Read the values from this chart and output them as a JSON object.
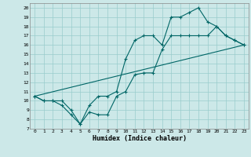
{
  "xlabel": "Humidex (Indice chaleur)",
  "bg_color": "#cce8e8",
  "grid_color": "#99cccc",
  "line_color": "#006666",
  "xlim": [
    -0.5,
    23.5
  ],
  "ylim": [
    7,
    20.5
  ],
  "xticks": [
    0,
    1,
    2,
    3,
    4,
    5,
    6,
    7,
    8,
    9,
    10,
    11,
    12,
    13,
    14,
    15,
    16,
    17,
    18,
    19,
    20,
    21,
    22,
    23
  ],
  "yticks": [
    7,
    8,
    9,
    10,
    11,
    12,
    13,
    14,
    15,
    16,
    17,
    18,
    19,
    20
  ],
  "line1_x": [
    0,
    1,
    2,
    3,
    4,
    5,
    6,
    7,
    8,
    9,
    10,
    11,
    12,
    13,
    14,
    15,
    16,
    17,
    18,
    19,
    20,
    21,
    22,
    23
  ],
  "line1_y": [
    10.5,
    10.0,
    10.0,
    9.5,
    8.5,
    7.5,
    8.8,
    8.5,
    8.5,
    10.5,
    11.0,
    12.8,
    13.0,
    13.0,
    15.5,
    17.0,
    17.0,
    17.0,
    17.0,
    17.0,
    18.0,
    17.0,
    16.5,
    16.0
  ],
  "line2_x": [
    0,
    1,
    2,
    3,
    4,
    5,
    6,
    7,
    8,
    9,
    10,
    11,
    12,
    13,
    14,
    15,
    16,
    17,
    18,
    19,
    20,
    21,
    22,
    23
  ],
  "line2_y": [
    10.5,
    10.0,
    10.0,
    10.0,
    9.0,
    7.5,
    9.5,
    10.5,
    10.5,
    11.0,
    14.5,
    16.5,
    17.0,
    17.0,
    16.0,
    19.0,
    19.0,
    19.5,
    20.0,
    18.5,
    18.0,
    17.0,
    16.5,
    16.0
  ],
  "line3_x": [
    0,
    23
  ],
  "line3_y": [
    10.5,
    16.0
  ]
}
